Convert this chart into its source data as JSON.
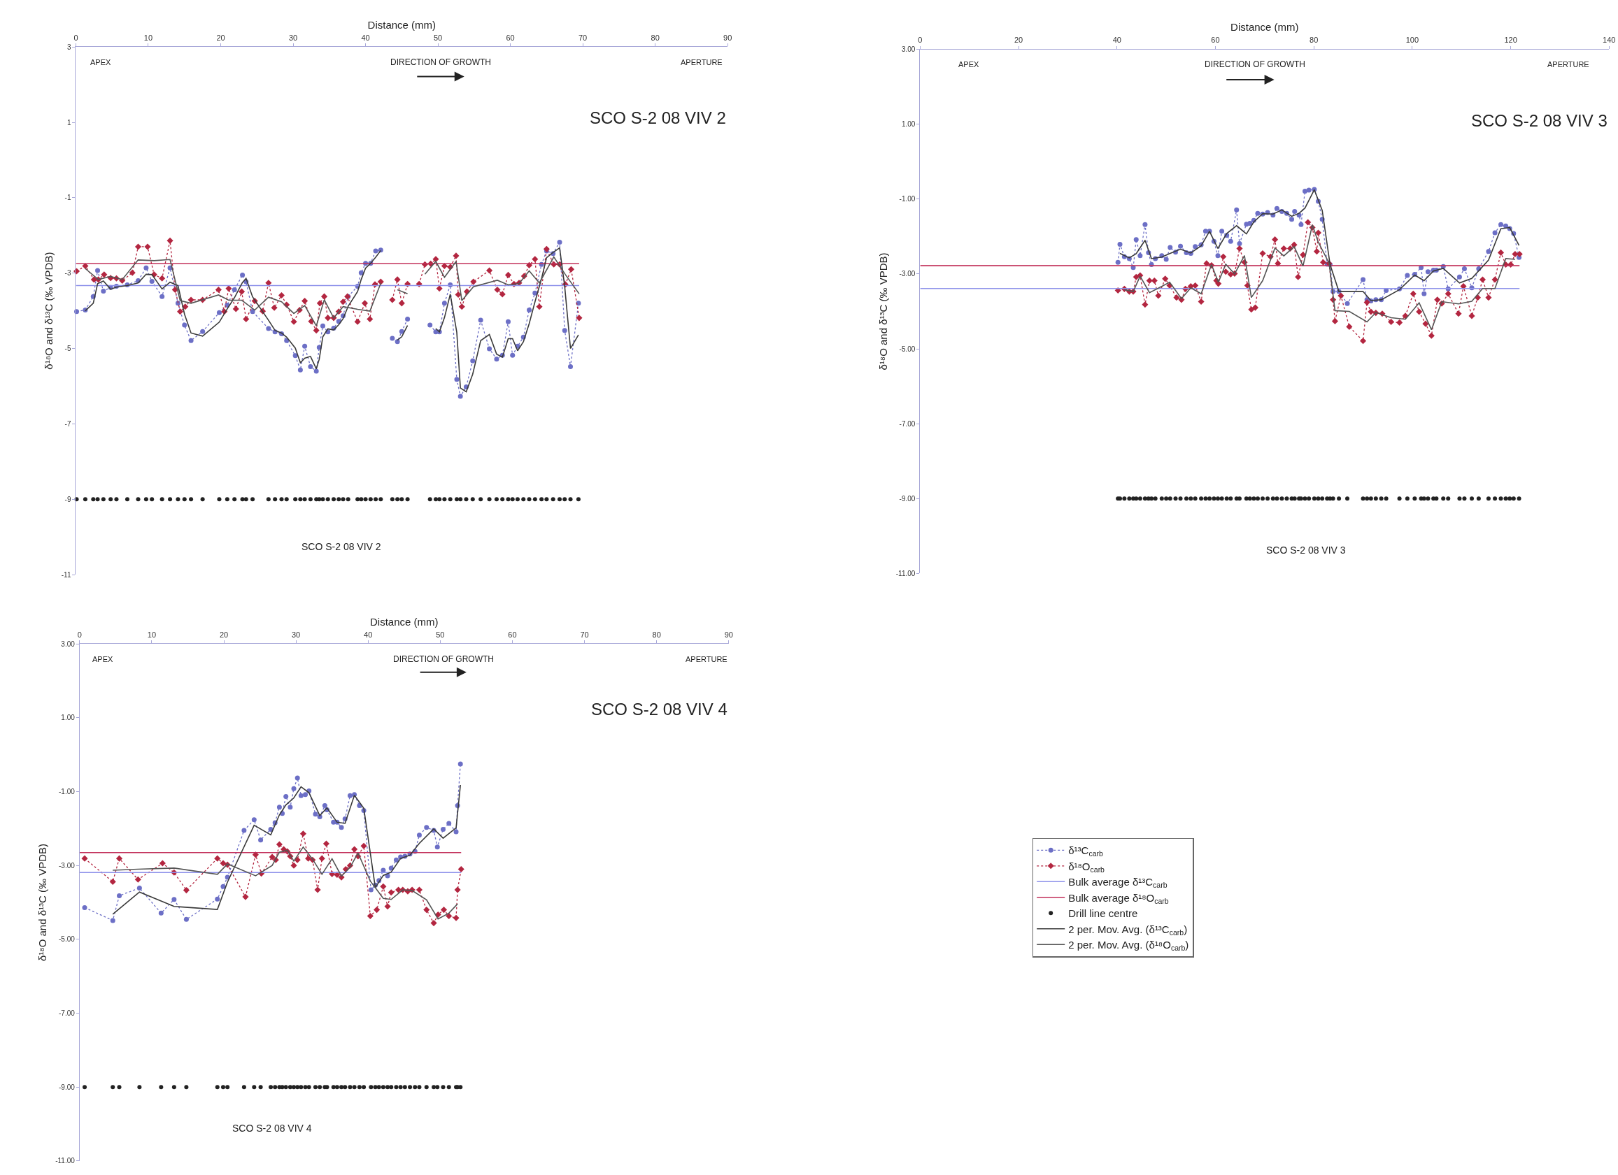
{
  "chart_data": [
    {
      "type": "line",
      "title": "SCO S-2 08 VIV 2",
      "xlabel": "Distance (mm)",
      "ylabel": "δ¹⁸O and δ¹³C (‰ VPDB)",
      "xlim": [
        0,
        90
      ],
      "xticks": [
        0,
        10,
        20,
        30,
        40,
        50,
        60,
        70,
        80,
        90
      ],
      "ylim": [
        -11,
        3
      ],
      "yticks": [
        3,
        1,
        -1,
        -3,
        -5,
        -7,
        -9,
        -11
      ],
      "annotations": [
        "APEX",
        "DIRECTION OF GROWTH",
        "APERTURE",
        "SCO S-2 08 VIV 2"
      ],
      "series": [
        {
          "type": "line",
          "color": "#6c6fc6",
          "marker": "circle",
          "line_style": "dotted",
          "x": [
            0.1,
            1.3,
            2.4,
            3.0,
            3.8,
            4.8,
            5.6,
            7.1,
            8.6,
            9.7,
            10.5,
            11.9,
            13.0,
            14.1,
            15.0,
            15.9,
            17.5,
            19.8,
            20.9,
            21.9,
            23.0,
            23.5,
            24.4,
            26.6,
            27.5,
            28.4,
            29.1,
            30.3,
            31.0,
            31.6,
            32.4,
            33.2,
            33.6,
            34.1,
            34.8,
            35.6,
            36.3,
            36.9,
            37.6,
            38.9,
            39.4,
            40.0,
            40.7,
            41.4,
            42.1,
            42.9,
            43.7,
            44.4,
            45.0,
            45.8,
            47.3,
            48.9,
            49.7,
            50.2,
            50.9,
            51.7,
            52.6,
            53.1,
            53.9,
            54.8,
            55.9,
            57.1,
            58.1,
            58.9,
            59.7,
            60.3,
            61.0,
            61.8,
            62.6,
            63.4,
            64.3,
            65.0,
            65.9,
            66.8,
            67.5,
            68.3,
            69.4
          ],
          "values": [
            -4.02,
            -3.98,
            -3.62,
            -2.93,
            -3.48,
            -3.38,
            -3.35,
            -3.31,
            -3.2,
            -2.86,
            -3.22,
            -3.62,
            -2.86,
            -3.8,
            -4.38,
            -4.79,
            -4.55,
            -4.05,
            -3.85,
            -3.44,
            -3.05,
            -3.23,
            -4.02,
            -4.47,
            -4.56,
            -4.61,
            -4.79,
            -5.19,
            -5.57,
            -4.94,
            -5.48,
            -5.6,
            -4.97,
            -4.4,
            -4.56,
            -4.46,
            -4.28,
            -4.13,
            -3.62,
            -3.35,
            -2.99,
            -2.74,
            -2.74,
            -2.41,
            -2.39,
            null,
            -4.73,
            -4.82,
            -4.55,
            -4.22,
            null,
            -4.38,
            -4.56,
            -4.56,
            -3.8,
            -3.31,
            -5.82,
            -6.27,
            -6.02,
            -5.33,
            -4.25,
            -5.01,
            -5.28,
            -5.18,
            -4.29,
            -5.18,
            -4.94,
            -4.7,
            -3.98,
            -3.53,
            -2.77,
            -2.41,
            -2.48,
            -2.18,
            -4.52,
            -5.48,
            -3.8
          ]
        },
        {
          "type": "line",
          "color": "#b32640",
          "marker": "diamond",
          "line_style": "dotted",
          "x": [
            0.1,
            1.3,
            2.5,
            3.1,
            3.9,
            4.8,
            5.6,
            6.4,
            7.8,
            8.6,
            9.9,
            10.8,
            11.9,
            13.0,
            13.7,
            14.4,
            15.1,
            15.9,
            17.5,
            19.7,
            20.5,
            21.1,
            22.1,
            22.9,
            23.5,
            24.7,
            25.8,
            26.6,
            27.4,
            28.4,
            29.1,
            30.1,
            30.9,
            31.6,
            32.5,
            33.2,
            33.7,
            34.3,
            34.8,
            35.6,
            36.3,
            36.9,
            37.5,
            38.9,
            39.9,
            40.6,
            41.3,
            42.1,
            42.9,
            43.7,
            44.4,
            45.0,
            45.8,
            46.6,
            47.4,
            48.2,
            49.0,
            49.7,
            50.2,
            50.9,
            51.7,
            52.5,
            52.8,
            53.3,
            54.0,
            54.9,
            57.1,
            58.2,
            58.9,
            59.7,
            60.5,
            61.2,
            61.9,
            62.6,
            63.4,
            64.0,
            65.0,
            66.0,
            66.8,
            67.6,
            68.4,
            69.5
          ],
          "values": [
            -2.95,
            -2.81,
            -3.17,
            -3.17,
            -3.04,
            -3.13,
            -3.14,
            -3.2,
            -2.99,
            -2.3,
            -2.3,
            -3.04,
            -3.14,
            -2.14,
            -3.44,
            -4.02,
            -3.89,
            -3.71,
            -3.71,
            -3.44,
            -4.02,
            -3.41,
            -3.95,
            -3.49,
            -4.22,
            -3.74,
            -4.01,
            -3.26,
            -3.92,
            -3.59,
            -3.84,
            -4.29,
            -3.98,
            -3.74,
            -4.28,
            -4.52,
            -3.8,
            -3.62,
            -4.19,
            -4.19,
            -4.02,
            -3.76,
            -3.62,
            -4.29,
            -3.8,
            -4.22,
            -3.3,
            -3.23,
            null,
            -3.71,
            -3.17,
            -3.8,
            -3.29,
            null,
            -3.29,
            -2.77,
            -2.75,
            -2.63,
            -3.41,
            -2.81,
            -2.84,
            -2.54,
            -3.57,
            -3.89,
            -3.49,
            -3.23,
            -2.93,
            -3.44,
            -3.56,
            -3.05,
            -3.29,
            -3.26,
            -3.08,
            -2.79,
            -2.63,
            -3.89,
            -2.36,
            -2.77,
            -2.77,
            -3.3,
            -2.9,
            -4.19
          ]
        },
        {
          "type": "line",
          "color": "#8e92ea",
          "marker": "none",
          "line_style": "solid",
          "x": [
            0,
            69.5
          ],
          "values": [
            -3.33,
            -3.33
          ]
        },
        {
          "type": "line",
          "color": "#c2305a",
          "marker": "none",
          "line_style": "solid",
          "x": [
            0,
            69.5
          ],
          "values": [
            -2.75,
            -2.75
          ]
        },
        {
          "type": "scatter",
          "color": "#222222",
          "marker": "circle",
          "x": [
            0.1,
            1.3,
            2.4,
            3.0,
            3.8,
            4.8,
            5.6,
            7.1,
            8.6,
            9.7,
            10.5,
            11.9,
            13.0,
            14.1,
            15.0,
            15.9,
            17.5,
            19.8,
            20.9,
            21.9,
            23.0,
            23.5,
            24.4,
            26.6,
            27.5,
            28.4,
            29.1,
            30.3,
            31.0,
            31.6,
            32.4,
            33.2,
            33.6,
            34.1,
            34.8,
            35.6,
            36.3,
            36.9,
            37.6,
            38.9,
            39.4,
            40.0,
            40.7,
            41.4,
            42.1,
            43.7,
            44.4,
            45.0,
            45.8,
            48.9,
            49.7,
            50.2,
            50.9,
            51.7,
            52.6,
            53.1,
            53.9,
            54.8,
            55.9,
            57.1,
            58.1,
            58.9,
            59.7,
            60.3,
            61.0,
            61.8,
            62.6,
            63.4,
            64.3,
            65.0,
            65.9,
            66.8,
            67.5,
            68.3,
            69.4
          ],
          "values": [
            -9,
            -9,
            -9,
            -9,
            -9,
            -9,
            -9,
            -9,
            -9,
            -9,
            -9,
            -9,
            -9,
            -9,
            -9,
            -9,
            -9,
            -9,
            -9,
            -9,
            -9,
            -9,
            -9,
            -9,
            -9,
            -9,
            -9,
            -9,
            -9,
            -9,
            -9,
            -9,
            -9,
            -9,
            -9,
            -9,
            -9,
            -9,
            -9,
            -9,
            -9,
            -9,
            -9,
            -9,
            -9,
            -9,
            -9,
            -9,
            -9,
            -9,
            -9,
            -9,
            -9,
            -9,
            -9,
            -9,
            -9,
            -9,
            -9,
            -9,
            -9,
            -9,
            -9,
            -9,
            -9,
            -9,
            -9,
            -9,
            -9,
            -9,
            -9,
            -9,
            -9,
            -9,
            -9
          ]
        },
        {
          "type": "line",
          "color": "#3a3a3a",
          "marker": "none",
          "line_style": "solid",
          "x": [
            1.3,
            2.4,
            3.0,
            3.8,
            4.8,
            5.6,
            7.1,
            8.6,
            9.7,
            10.5,
            11.9,
            13.0,
            14.1,
            15.0,
            15.9,
            17.5,
            19.8,
            20.9,
            21.9,
            23.0,
            23.5,
            24.4,
            26.6,
            27.5,
            28.4,
            29.1,
            30.3,
            31.0,
            31.6,
            32.4,
            33.2,
            33.6,
            34.1,
            34.8,
            35.6,
            36.3,
            36.9,
            37.6,
            38.9,
            39.4,
            40.0,
            40.7,
            41.4,
            42.1,
            42.9,
            44.4,
            45.0,
            45.8,
            47.3,
            49.7,
            50.2,
            50.9,
            51.7,
            52.6,
            53.1,
            53.9,
            54.8,
            55.9,
            57.1,
            58.1,
            58.9,
            59.7,
            60.3,
            61.0,
            61.8,
            62.6,
            63.4,
            64.3,
            65.0,
            65.9,
            66.8,
            67.5,
            68.3,
            69.4
          ],
          "values": [
            -4.0,
            -3.8,
            -3.28,
            -3.21,
            -3.43,
            -3.37,
            -3.33,
            -3.26,
            -3.03,
            -3.04,
            -3.42,
            -3.24,
            -3.33,
            -4.09,
            -4.59,
            -4.67,
            -4.3,
            -3.95,
            -3.65,
            -3.25,
            -3.14,
            -3.63,
            -4.25,
            -4.52,
            -4.59,
            -4.7,
            -4.99,
            -5.38,
            -5.26,
            -5.21,
            -5.54,
            -5.29,
            -4.69,
            -4.48,
            -4.51,
            -4.37,
            -4.21,
            -3.88,
            -3.49,
            -3.17,
            -2.87,
            -2.74,
            -2.58,
            -2.4,
            null,
            -4.78,
            -4.69,
            -4.39,
            null,
            -4.47,
            -4.56,
            -4.18,
            -3.56,
            -4.57,
            -6.05,
            -6.15,
            -5.68,
            -4.79,
            -4.63,
            -5.15,
            -5.23,
            -4.74,
            -4.74,
            -5.06,
            -4.82,
            -4.34,
            -3.76,
            -3.15,
            -2.59,
            -2.45,
            -2.33,
            -3.35,
            -5.0,
            -4.64
          ]
        },
        {
          "type": "line",
          "color": "#555555",
          "marker": "none",
          "line_style": "solid",
          "x": [
            1.3,
            3.1,
            4.8,
            6.4,
            8.6,
            10.8,
            13.0,
            14.4,
            15.9,
            19.7,
            21.1,
            22.9,
            24.7,
            26.6,
            28.4,
            30.1,
            31.6,
            33.2,
            34.3,
            35.6,
            36.9,
            38.9,
            40.6,
            42.1,
            42.9,
            44.4,
            45.8,
            46.6,
            48.2,
            49.7,
            50.9,
            52.5,
            53.3,
            54.9,
            58.2,
            59.7,
            61.2,
            62.6,
            64.0,
            66.0,
            67.6,
            69.5
          ],
          "values": [
            -2.88,
            -3.17,
            -3.09,
            -3.17,
            -2.65,
            -2.67,
            -2.64,
            -3.73,
            -3.8,
            -3.58,
            -3.72,
            -3.72,
            -3.98,
            -3.64,
            -3.76,
            -4.07,
            -3.86,
            -4.4,
            -3.71,
            -4.19,
            -3.89,
            -3.96,
            -4.01,
            -3.27,
            null,
            -3.44,
            -3.55,
            null,
            -3.03,
            -2.69,
            -3.11,
            -2.69,
            -3.73,
            -3.36,
            -3.19,
            -3.31,
            -3.28,
            -2.94,
            -3.26,
            -2.57,
            -3.04,
            -3.55
          ]
        }
      ]
    },
    {
      "type": "line",
      "title": "SCO S-2 08 VIV 3",
      "xlabel": "Distance (mm)",
      "ylabel": "δ¹⁸O and δ¹³C (‰ VPDB)",
      "xlim": [
        0,
        140
      ],
      "xticks": [
        0,
        20,
        40,
        60,
        80,
        100,
        120,
        140
      ],
      "ylim": [
        -11,
        3
      ],
      "yticks": [
        {
          "value": 3,
          "label": "3.00"
        },
        {
          "value": 1,
          "label": "1.00"
        },
        {
          "value": -1,
          "label": "-1.00"
        },
        {
          "value": -3,
          "label": "-3.00"
        },
        {
          "value": -5,
          "label": "-5.00"
        },
        {
          "value": -7,
          "label": "-7.00"
        },
        {
          "value": -9,
          "label": "-9.00"
        },
        {
          "value": -11,
          "label": "-11.00"
        }
      ],
      "annotations": [
        "APEX",
        "DIRECTION OF GROWTH",
        "APERTURE",
        "SCO S-2 08 VIV 3"
      ],
      "series": [
        {
          "type": "line",
          "color": "#6c6fc6",
          "marker": "circle",
          "line_style": "dotted",
          "x": [
            40.2,
            40.6,
            41.5,
            42.5,
            43.3,
            43.9,
            44.7,
            45.7,
            46.4,
            47.0,
            47.8,
            49.1,
            50.0,
            50.8,
            51.9,
            52.9,
            54.1,
            55.0,
            55.9,
            57.1,
            58.0,
            58.8,
            59.7,
            60.5,
            61.3,
            62.3,
            63.1,
            64.3,
            64.9,
            66.3,
            67.0,
            67.8,
            68.6,
            69.6,
            70.6,
            71.7,
            72.5,
            73.5,
            74.5,
            75.5,
            76.1,
            77.0,
            77.4,
            78.2,
            79.0,
            80.1,
            80.9,
            81.7,
            82.7,
            83.3,
            83.9,
            85.1,
            86.8,
            90.0,
            90.8,
            91.6,
            92.6,
            93.7,
            94.7,
            97.4,
            99.0,
            100.5,
            101.8,
            102.4,
            103.2,
            104.3,
            104.9,
            106.3,
            107.3,
            109.6,
            110.6,
            112.1,
            113.5,
            115.5,
            116.8,
            118.0,
            119.0,
            119.8,
            120.6,
            121.7
          ],
          "values": [
            -2.69,
            -2.21,
            -2.54,
            -2.59,
            -2.83,
            -2.08,
            -2.51,
            -1.68,
            -2.43,
            -2.75,
            -2.59,
            -2.51,
            -2.61,
            -2.29,
            -2.42,
            -2.26,
            -2.43,
            -2.45,
            -2.27,
            -2.22,
            -1.86,
            -1.86,
            -2.13,
            -2.51,
            -1.86,
            -1.97,
            -2.13,
            -1.29,
            -2.19,
            -1.67,
            -1.65,
            -1.57,
            -1.38,
            -1.4,
            -1.36,
            -1.43,
            -1.25,
            -1.33,
            -1.38,
            -1.54,
            -1.33,
            -1.43,
            -1.68,
            -0.79,
            -0.76,
            -0.74,
            -1.06,
            -1.54,
            -2.74,
            -2.75,
            -3.47,
            -3.47,
            -3.79,
            -3.15,
            -3.69,
            -3.72,
            -3.69,
            -3.69,
            -3.44,
            -3.4,
            -3.04,
            -3.01,
            -2.83,
            -3.53,
            -2.94,
            -2.9,
            -2.9,
            -2.8,
            -3.4,
            -3.08,
            -2.86,
            -3.37,
            -2.86,
            -2.4,
            -1.9,
            -1.68,
            -1.72,
            -1.79,
            -1.92,
            -2.56
          ]
        },
        {
          "type": "line",
          "color": "#b32640",
          "marker": "diamond",
          "line_style": "dotted",
          "x": [
            40.2,
            41.5,
            42.5,
            43.3,
            43.9,
            44.7,
            45.7,
            46.6,
            47.6,
            48.4,
            49.8,
            50.7,
            52.1,
            53.1,
            53.9,
            55.0,
            55.9,
            57.1,
            58.2,
            59.2,
            60.2,
            60.6,
            61.6,
            62.1,
            63.1,
            63.9,
            64.9,
            65.9,
            66.5,
            67.3,
            68.1,
            69.6,
            71.2,
            72.1,
            72.7,
            73.9,
            75.2,
            76.0,
            76.8,
            77.8,
            78.8,
            79.7,
            80.6,
            80.9,
            81.9,
            83.1,
            83.9,
            84.3,
            85.5,
            87.2,
            90.0,
            90.8,
            91.6,
            92.6,
            93.9,
            95.7,
            97.4,
            98.6,
            100.2,
            101.4,
            102.7,
            103.9,
            105.1,
            106.0,
            107.3,
            109.4,
            110.4,
            112.1,
            113.3,
            114.3,
            115.5,
            116.8,
            118.0,
            119.0,
            120.0,
            120.9,
            121.8
          ],
          "values": [
            -3.44,
            -3.4,
            -3.47,
            -3.47,
            -3.08,
            -3.04,
            -3.82,
            -3.18,
            -3.18,
            -3.58,
            -3.13,
            -3.31,
            -3.63,
            -3.69,
            -3.4,
            -3.33,
            -3.31,
            -3.74,
            -2.72,
            -2.77,
            -3.18,
            -3.26,
            -2.54,
            -2.94,
            -3.01,
            -2.99,
            -2.32,
            -2.69,
            -3.31,
            -3.95,
            -3.9,
            -2.45,
            -2.54,
            -2.08,
            -2.72,
            -2.32,
            -2.32,
            -2.22,
            -3.08,
            -2.49,
            -1.62,
            -1.76,
            -2.4,
            -1.9,
            -2.69,
            -2.72,
            -3.69,
            -4.26,
            -3.58,
            -4.41,
            -4.79,
            -3.76,
            -4.01,
            -4.04,
            -4.06,
            -4.28,
            -4.3,
            -4.12,
            -3.53,
            -4.01,
            -4.33,
            -4.65,
            -3.69,
            -3.79,
            -3.53,
            -4.06,
            -3.33,
            -4.12,
            -3.63,
            -3.15,
            -3.63,
            -3.15,
            -2.43,
            -2.75,
            -2.75,
            -2.47,
            -2.47
          ]
        },
        {
          "type": "line",
          "color": "#8e92ea",
          "marker": "none",
          "line_style": "solid",
          "x": [
            0,
            121.8
          ],
          "values": [
            -3.39,
            -3.39
          ]
        },
        {
          "type": "line",
          "color": "#c2305a",
          "marker": "none",
          "line_style": "solid",
          "x": [
            0,
            121.8
          ],
          "values": [
            -2.78,
            -2.78
          ]
        },
        {
          "type": "scatter",
          "color": "#222222",
          "marker": "circle",
          "x": [
            40.2,
            40.6,
            41.5,
            42.5,
            43.3,
            43.9,
            44.7,
            45.7,
            46.4,
            47.0,
            47.8,
            49.1,
            50.0,
            50.8,
            51.9,
            52.9,
            54.1,
            55.0,
            55.9,
            57.1,
            58.0,
            58.8,
            59.7,
            60.5,
            61.3,
            62.3,
            63.1,
            64.3,
            64.9,
            66.3,
            67.0,
            67.8,
            68.6,
            69.6,
            70.6,
            71.7,
            72.5,
            73.5,
            74.5,
            75.5,
            76.1,
            77.0,
            77.4,
            78.2,
            79.0,
            80.1,
            80.9,
            81.7,
            82.7,
            83.3,
            83.9,
            85.1,
            86.8,
            90.0,
            90.8,
            91.6,
            92.6,
            93.7,
            94.7,
            97.4,
            99.0,
            100.5,
            101.8,
            102.4,
            103.2,
            104.3,
            104.9,
            106.3,
            107.3,
            109.6,
            110.6,
            112.1,
            113.5,
            115.5,
            116.8,
            118.0,
            119.0,
            119.8,
            120.6,
            121.7
          ],
          "values": [
            -9,
            -9,
            -9,
            -9,
            -9,
            -9,
            -9,
            -9,
            -9,
            -9,
            -9,
            -9,
            -9,
            -9,
            -9,
            -9,
            -9,
            -9,
            -9,
            -9,
            -9,
            -9,
            -9,
            -9,
            -9,
            -9,
            -9,
            -9,
            -9,
            -9,
            -9,
            -9,
            -9,
            -9,
            -9,
            -9,
            -9,
            -9,
            -9,
            -9,
            -9,
            -9,
            -9,
            -9,
            -9,
            -9,
            -9,
            -9,
            -9,
            -9,
            -9,
            -9,
            -9,
            -9,
            -9,
            -9,
            -9,
            -9,
            -9,
            -9,
            -9,
            -9,
            -9,
            -9,
            -9,
            -9,
            -9,
            -9,
            -9,
            -9,
            -9,
            -9,
            -9,
            -9,
            -9,
            -9,
            -9,
            -9,
            -9,
            -9
          ]
        },
        {
          "type": "line",
          "color": "#3a3a3a",
          "marker": "none",
          "line_style": "solid",
          "x": [
            40.6,
            42.5,
            43.9,
            45.7,
            47.0,
            49.1,
            50.8,
            52.9,
            55.0,
            57.1,
            58.8,
            60.5,
            62.3,
            64.3,
            66.3,
            67.8,
            69.6,
            71.7,
            73.5,
            75.5,
            77.0,
            78.2,
            80.1,
            81.7,
            83.3,
            85.1,
            90.0,
            91.6,
            93.7,
            97.4,
            100.5,
            102.4,
            104.3,
            106.3,
            109.6,
            112.1,
            115.5,
            118.0,
            119.8,
            121.7
          ],
          "values": [
            -2.45,
            -2.57,
            -2.46,
            -2.1,
            -2.59,
            -2.55,
            -2.45,
            -2.34,
            -2.44,
            -2.25,
            -1.86,
            -2.32,
            -1.92,
            -1.71,
            -1.93,
            -1.61,
            -1.39,
            -1.4,
            -1.29,
            -1.46,
            -1.38,
            -1.24,
            -0.75,
            -1.3,
            -2.75,
            -3.47,
            -3.47,
            -3.71,
            -3.69,
            -3.42,
            -3.03,
            -3.18,
            -2.92,
            -2.85,
            -3.24,
            -3.12,
            -2.63,
            -1.79,
            -1.76,
            -2.24
          ]
        },
        {
          "type": "line",
          "color": "#555555",
          "marker": "none",
          "line_style": "solid",
          "x": [
            41.5,
            43.3,
            44.7,
            46.6,
            48.4,
            50.7,
            53.1,
            55.0,
            57.1,
            59.2,
            60.6,
            62.1,
            63.9,
            65.9,
            67.3,
            69.6,
            72.1,
            73.9,
            76.0,
            77.8,
            79.7,
            80.9,
            83.1,
            84.3,
            87.2,
            90.8,
            92.6,
            95.7,
            98.6,
            101.4,
            103.9,
            106.0,
            109.4,
            112.1,
            114.3,
            116.8,
            119.0,
            120.9
          ],
          "values": [
            -3.42,
            -3.47,
            -3.06,
            -3.5,
            -3.38,
            -3.22,
            -3.66,
            -3.37,
            -3.53,
            -2.75,
            -3.22,
            -2.74,
            -3.0,
            -2.51,
            -3.63,
            -3.18,
            -2.31,
            -2.52,
            -2.27,
            -2.79,
            -1.69,
            -2.15,
            -2.71,
            -3.98,
            -4.0,
            -4.28,
            -4.03,
            -4.17,
            -4.21,
            -3.77,
            -4.49,
            -3.74,
            -3.8,
            -3.73,
            -3.39,
            -3.39,
            -2.59,
            -2.61
          ]
        }
      ]
    },
    {
      "type": "line",
      "title": "SCO S-2 08 VIV 4",
      "xlabel": "Distance (mm)",
      "ylabel": "δ¹⁸O and δ¹³C (‰ VPDB)",
      "xlim": [
        0,
        90
      ],
      "xticks": [
        0,
        10,
        20,
        30,
        40,
        50,
        60,
        70,
        80,
        90
      ],
      "ylim": [
        -11,
        3
      ],
      "yticks": [
        {
          "value": 3,
          "label": "3.00"
        },
        {
          "value": 1,
          "label": "1.00"
        },
        {
          "value": -1,
          "label": "-1.00"
        },
        {
          "value": -3,
          "label": "-3.00"
        },
        {
          "value": -5,
          "label": "-5.00"
        },
        {
          "value": -7,
          "label": "-7.00"
        },
        {
          "value": -9,
          "label": "-9.00"
        },
        {
          "value": -11,
          "label": "-11.00"
        }
      ],
      "legend": "right",
      "annotations": [
        "APEX",
        "DIRECTION OF GROWTH",
        "APERTURE",
        "SCO S-2 08 VIV 4"
      ],
      "series": [
        {
          "name": "δ¹³C$_{carb}$",
          "type": "line",
          "color": "#6c6fc6",
          "marker": "circle",
          "line_style": "dotted",
          "x": [
            0.7,
            4.6,
            5.5,
            8.3,
            11.3,
            13.1,
            14.8,
            19.1,
            19.9,
            20.5,
            22.8,
            24.2,
            25.1,
            26.5,
            27.1,
            27.7,
            28.1,
            28.6,
            29.2,
            29.7,
            30.2,
            30.7,
            31.3,
            31.8,
            32.7,
            33.3,
            34.0,
            34.3,
            35.2,
            35.7,
            36.3,
            36.8,
            37.5,
            38.1,
            38.8,
            39.4,
            40.4,
            41.0,
            41.5,
            42.1,
            42.7,
            43.2,
            43.9,
            44.5,
            45.1,
            45.8,
            46.5,
            47.1,
            48.1,
            49.1,
            49.6,
            50.4,
            51.2,
            52.2,
            52.4,
            52.8
          ],
          "values": [
            -4.14,
            -4.49,
            -3.82,
            -3.61,
            -4.29,
            -3.92,
            -4.46,
            -3.91,
            -3.57,
            -3.32,
            -2.05,
            -1.76,
            -2.31,
            -2.02,
            -1.84,
            -1.42,
            -1.59,
            -1.13,
            -1.42,
            -0.92,
            -0.63,
            -1.11,
            -1.08,
            -0.98,
            -1.61,
            -1.68,
            -1.38,
            -1.49,
            -1.83,
            -1.83,
            -1.97,
            -1.74,
            -1.11,
            -1.08,
            -1.38,
            -1.51,
            -3.66,
            -3.53,
            -3.41,
            -3.13,
            -3.28,
            -3.07,
            -2.85,
            -2.77,
            -2.75,
            -2.69,
            -2.62,
            -2.18,
            -1.97,
            -2.05,
            -2.5,
            -2.02,
            -1.86,
            -2.09,
            -1.38,
            -0.25
          ]
        },
        {
          "name": "δ¹⁸O$_{carb}$",
          "type": "line",
          "color": "#b32640",
          "marker": "diamond",
          "line_style": "dotted",
          "x": [
            0.7,
            4.6,
            5.5,
            8.1,
            11.5,
            13.1,
            14.8,
            19.1,
            19.9,
            20.5,
            23.0,
            24.4,
            25.2,
            26.7,
            27.2,
            27.7,
            28.3,
            28.8,
            29.2,
            29.7,
            30.2,
            31.0,
            31.7,
            32.3,
            33.0,
            33.6,
            34.2,
            35.0,
            35.7,
            36.3,
            36.9,
            37.5,
            38.1,
            38.6,
            39.4,
            40.3,
            41.2,
            42.1,
            42.7,
            43.2,
            44.2,
            44.8,
            45.5,
            46.1,
            47.1,
            48.1,
            49.1,
            49.7,
            50.5,
            51.2,
            52.2,
            52.4,
            52.9
          ],
          "values": [
            -2.81,
            -3.44,
            -2.81,
            -3.38,
            -2.94,
            -3.19,
            -3.67,
            -2.81,
            -2.94,
            -2.98,
            -3.85,
            -2.71,
            -3.22,
            -2.77,
            -2.85,
            -2.43,
            -2.56,
            -2.62,
            -2.75,
            -3.0,
            -2.85,
            -2.14,
            -2.81,
            -2.85,
            -3.66,
            -2.81,
            -2.41,
            -3.23,
            -3.25,
            -3.32,
            -3.1,
            -3.0,
            -2.56,
            -2.75,
            -2.47,
            -4.37,
            -4.2,
            -3.57,
            -4.11,
            -3.73,
            -3.66,
            -3.66,
            -3.7,
            -3.66,
            -3.66,
            -4.2,
            -4.56,
            -4.33,
            -4.2,
            -4.37,
            -4.42,
            -3.66,
            -3.1
          ]
        },
        {
          "name": "Bulk average δ¹³C$_{carb}$",
          "type": "line",
          "color": "#8e92ea",
          "marker": "none",
          "line_style": "solid",
          "x": [
            0,
            52.9
          ],
          "values": [
            -3.19,
            -3.19
          ]
        },
        {
          "name": "Bulk average δ¹⁸O$_{carb}$",
          "type": "line",
          "color": "#c2305a",
          "marker": "none",
          "line_style": "solid",
          "x": [
            0,
            52.9
          ],
          "values": [
            -2.65,
            -2.65
          ]
        },
        {
          "name": "Drill line centre",
          "type": "scatter",
          "color": "#222222",
          "marker": "circle",
          "x": [
            0.7,
            4.6,
            5.5,
            8.3,
            11.3,
            13.1,
            14.8,
            19.1,
            19.9,
            20.5,
            22.8,
            24.2,
            25.1,
            26.5,
            27.1,
            27.7,
            28.1,
            28.6,
            29.2,
            29.7,
            30.2,
            30.7,
            31.3,
            31.8,
            32.7,
            33.3,
            34.0,
            34.3,
            35.2,
            35.7,
            36.3,
            36.8,
            37.5,
            38.1,
            38.8,
            39.4,
            40.4,
            41.0,
            41.5,
            42.1,
            42.7,
            43.2,
            43.9,
            44.5,
            45.1,
            45.8,
            46.5,
            47.1,
            48.1,
            49.1,
            49.6,
            50.4,
            51.2,
            52.2,
            52.4,
            52.8
          ],
          "values": [
            -9,
            -9,
            -9,
            -9,
            -9,
            -9,
            -9,
            -9,
            -9,
            -9,
            -9,
            -9,
            -9,
            -9,
            -9,
            -9,
            -9,
            -9,
            -9,
            -9,
            -9,
            -9,
            -9,
            -9,
            -9,
            -9,
            -9,
            -9,
            -9,
            -9,
            -9,
            -9,
            -9,
            -9,
            -9,
            -9,
            -9,
            -9,
            -9,
            -9,
            -9,
            -9,
            -9,
            -9,
            -9,
            -9,
            -9,
            -9,
            -9,
            -9,
            -9,
            -9,
            -9,
            -9,
            -9,
            -9
          ]
        },
        {
          "name": "2 per. Mov. Avg. (δ¹³C$_{carb}$)",
          "type": "line",
          "color": "#3a3a3a",
          "marker": "none",
          "line_style": "solid",
          "x": [
            4.6,
            8.3,
            13.1,
            19.1,
            20.5,
            24.2,
            26.5,
            27.7,
            28.6,
            29.7,
            30.7,
            31.8,
            33.3,
            34.3,
            35.7,
            36.8,
            38.1,
            39.4,
            41.0,
            42.1,
            43.2,
            44.5,
            45.8,
            47.1,
            49.1,
            50.4,
            52.2,
            52.8
          ],
          "values": [
            -4.32,
            -3.72,
            -4.11,
            -4.19,
            -3.45,
            -1.91,
            -2.17,
            -1.63,
            -1.36,
            -1.17,
            -0.87,
            -1.03,
            -1.65,
            -1.44,
            -1.83,
            -1.86,
            -1.1,
            -1.45,
            -3.6,
            -3.27,
            -3.18,
            -2.81,
            -2.72,
            -2.4,
            -2.01,
            -2.26,
            -1.98,
            -0.82
          ]
        },
        {
          "name": "2 per. Mov. Avg. (δ¹⁸O$_{carb}$)",
          "type": "line",
          "color": "#555555",
          "marker": "none",
          "line_style": "solid",
          "x": [
            4.6,
            8.1,
            13.1,
            19.1,
            20.5,
            24.4,
            26.7,
            27.7,
            28.8,
            29.7,
            31.0,
            32.3,
            33.6,
            35.0,
            36.3,
            37.5,
            38.6,
            40.3,
            42.1,
            43.2,
            44.8,
            46.1,
            48.1,
            49.7,
            51.2,
            52.4
          ],
          "values": [
            -3.13,
            -3.1,
            -3.07,
            -3.24,
            -2.96,
            -3.28,
            -3.0,
            -2.64,
            -2.59,
            -2.88,
            -2.5,
            -2.83,
            -3.24,
            -2.82,
            -3.29,
            -3.05,
            -2.66,
            -3.42,
            -3.89,
            -3.92,
            -3.66,
            -3.68,
            -3.93,
            -4.45,
            -4.29,
            -4.04
          ]
        }
      ]
    }
  ]
}
